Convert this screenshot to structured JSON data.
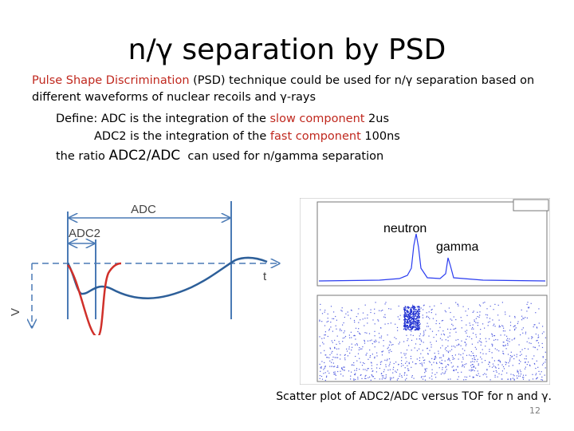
{
  "title": "n/γ separation by PSD",
  "intro": {
    "highlight": "Pulse Shape Discrimination",
    "text": " (PSD) technique could be used for n/γ separation based on different waveforms of nuclear recoils and γ-rays"
  },
  "definition": [
    [
      "Define: ADC is the integration of the ",
      "slow component",
      " 2us"
    ],
    [
      "ADC2 is the integration of the ",
      "fast component",
      " 100ns"
    ],
    [
      "the ratio ",
      "ADC2/ADC",
      "  can used for n/gamma separation"
    ]
  ],
  "diagram": {
    "adc": "ADC",
    "adc2": "ADC2",
    "t_axis": "t",
    "v_axis": "V"
  },
  "plot": {
    "neutron": "neutron",
    "gamma": "gamma",
    "caption": "Scatter plot of ADC2/ADC versus TOF for n and γ."
  },
  "page_number": "12"
}
